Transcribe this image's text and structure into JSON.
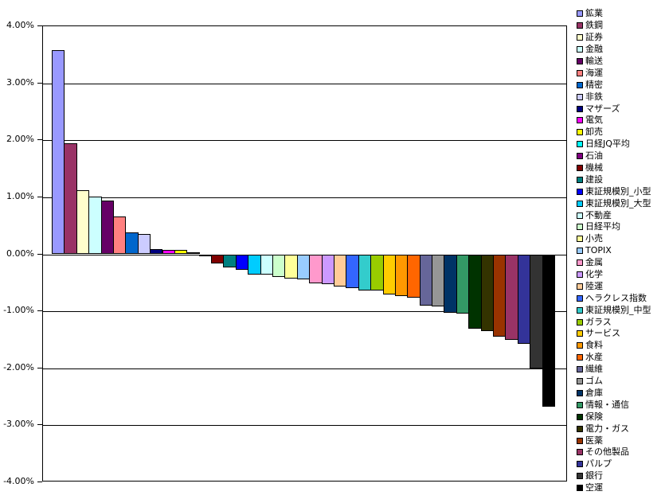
{
  "chart_data": {
    "type": "bar",
    "title": "",
    "xlabel": "",
    "ylabel": "",
    "ylim": [
      -4,
      4
    ],
    "ytick_step": 1,
    "ytick_labels": [
      "4.00%",
      "3.00%",
      "2.00%",
      "1.00%",
      "0.00%",
      "-1.00%",
      "-2.00%",
      "-3.00%",
      "-4.00%"
    ],
    "grid": true,
    "legend_position": "right",
    "unit": "%",
    "series": [
      {
        "name": "鉱業",
        "value": 3.58,
        "color": "#9999FF"
      },
      {
        "name": "鉄鋼",
        "value": 1.95,
        "color": "#993366"
      },
      {
        "name": "証券",
        "value": 1.13,
        "color": "#FFFFCC"
      },
      {
        "name": "金融",
        "value": 1.01,
        "color": "#CCFFFF"
      },
      {
        "name": "輸送",
        "value": 0.94,
        "color": "#660066"
      },
      {
        "name": "海運",
        "value": 0.66,
        "color": "#FF8080"
      },
      {
        "name": "精密",
        "value": 0.39,
        "color": "#0066CC"
      },
      {
        "name": "非鉄",
        "value": 0.35,
        "color": "#CCCCFF"
      },
      {
        "name": "マザーズ",
        "value": 0.09,
        "color": "#000080"
      },
      {
        "name": "電気",
        "value": 0.08,
        "color": "#FF00FF"
      },
      {
        "name": "卸売",
        "value": 0.07,
        "color": "#FFFF00"
      },
      {
        "name": "日経JQ平均",
        "value": 0.04,
        "color": "#00FFFF"
      },
      {
        "name": "石油",
        "value": -0.01,
        "color": "#800080"
      },
      {
        "name": "機械",
        "value": -0.16,
        "color": "#800000"
      },
      {
        "name": "建設",
        "value": -0.23,
        "color": "#008080"
      },
      {
        "name": "東証規模別_小型",
        "value": -0.27,
        "color": "#0000FF"
      },
      {
        "name": "東証規模別_大型",
        "value": -0.35,
        "color": "#00CCFF"
      },
      {
        "name": "不動産",
        "value": -0.36,
        "color": "#CCFFFF"
      },
      {
        "name": "日経平均",
        "value": -0.4,
        "color": "#CCFFCC"
      },
      {
        "name": "小売",
        "value": -0.42,
        "color": "#FFFF99"
      },
      {
        "name": "TOPIX",
        "value": -0.44,
        "color": "#99CCFF"
      },
      {
        "name": "金属",
        "value": -0.51,
        "color": "#FF99CC"
      },
      {
        "name": "化学",
        "value": -0.52,
        "color": "#CC99FF"
      },
      {
        "name": "陸運",
        "value": -0.57,
        "color": "#FFCC99"
      },
      {
        "name": "ヘラクレス指数",
        "value": -0.6,
        "color": "#3366FF"
      },
      {
        "name": "東証規模別_中型",
        "value": -0.63,
        "color": "#33CCCC"
      },
      {
        "name": "ガラス",
        "value": -0.64,
        "color": "#99CC00"
      },
      {
        "name": "サービス",
        "value": -0.71,
        "color": "#FFCC00"
      },
      {
        "name": "食料",
        "value": -0.73,
        "color": "#FF9900"
      },
      {
        "name": "水産",
        "value": -0.76,
        "color": "#FF6600"
      },
      {
        "name": "繊維",
        "value": -0.9,
        "color": "#666699"
      },
      {
        "name": "ゴム",
        "value": -0.91,
        "color": "#969696"
      },
      {
        "name": "倉庫",
        "value": -1.02,
        "color": "#003366"
      },
      {
        "name": "情報・通信",
        "value": -1.04,
        "color": "#339966"
      },
      {
        "name": "保険",
        "value": -1.3,
        "color": "#003300"
      },
      {
        "name": "電力・ガス",
        "value": -1.35,
        "color": "#333300"
      },
      {
        "name": "医薬",
        "value": -1.45,
        "color": "#993300"
      },
      {
        "name": "その他製品",
        "value": -1.5,
        "color": "#993366"
      },
      {
        "name": "パルプ",
        "value": -1.57,
        "color": "#333399"
      },
      {
        "name": "銀行",
        "value": -2.0,
        "color": "#333333"
      },
      {
        "name": "空運",
        "value": -2.68,
        "color": "#000000"
      }
    ]
  }
}
